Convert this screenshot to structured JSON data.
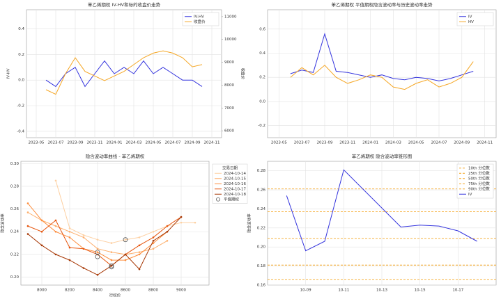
{
  "chart_data": [
    {
      "type": "line",
      "title": "苯乙烯期权 IV-HV和标的收盘价走势",
      "ylabel": "IV-HV",
      "y2label": "收盘价",
      "yaxis_color": "#1f77b4",
      "y2axis_color": "#d62728",
      "x": [
        "2023-06",
        "2023-07",
        "2023-08",
        "2023-09",
        "2023-10",
        "2023-11",
        "2023-12",
        "2024-01",
        "2024-02",
        "2024-03",
        "2024-04",
        "2024-05",
        "2024-06",
        "2024-07",
        "2024-08",
        "2024-09",
        "2024-10"
      ],
      "series": [
        {
          "name": "IV-HV",
          "color": "#3333dd",
          "values": [
            0.0,
            -0.05,
            0.05,
            0.1,
            -0.05,
            0.05,
            0.15,
            0.05,
            0.1,
            0.05,
            0.15,
            0.05,
            0.1,
            0.05,
            0.0,
            0.0,
            -0.05
          ]
        },
        {
          "name": "收盘价",
          "color": "#f5a623",
          "axis": "y2",
          "values": [
            7800,
            7600,
            8500,
            9200,
            8600,
            8400,
            8200,
            8400,
            8600,
            8900,
            9200,
            9400,
            9500,
            9400,
            9200,
            8800,
            8900
          ]
        }
      ],
      "xlim": [
        "2023-04",
        "2024-12"
      ],
      "xticks": [
        "2023-05",
        "2023-07",
        "2023-09",
        "2023-11",
        "2024-01",
        "2024-03",
        "2024-05",
        "2024-07",
        "2024-09",
        "2024-11"
      ],
      "ylim": [
        -0.45,
        0.55
      ],
      "yticks": [
        {
          "value": -0.4,
          "label": "-0.4"
        },
        -0.2,
        {
          "value": 0,
          "label": "0.0"
        },
        0.2,
        0.4
      ],
      "y2lim": [
        5700,
        11300
      ],
      "y2ticks": [
        6000,
        7000,
        8000,
        9000,
        10000,
        11000
      ],
      "grid": true,
      "legend": "upper right"
    },
    {
      "type": "line",
      "title": "苯乙烯期权 平值期权隐含波动率与历史波动率走势",
      "x": [
        "2023-06",
        "2023-07",
        "2023-08",
        "2023-09",
        "2023-10",
        "2023-11",
        "2023-12",
        "2024-01",
        "2024-02",
        "2024-03",
        "2024-04",
        "2024-05",
        "2024-06",
        "2024-07",
        "2024-08",
        "2024-09",
        "2024-10"
      ],
      "series": [
        {
          "name": "IV",
          "color": "#3333dd",
          "values": [
            0.23,
            0.26,
            0.24,
            0.56,
            0.25,
            0.24,
            0.22,
            0.2,
            0.22,
            0.19,
            0.18,
            0.2,
            0.19,
            0.17,
            0.19,
            0.22,
            0.25
          ]
        },
        {
          "name": "HV",
          "color": "#f5a623",
          "values": [
            0.2,
            0.28,
            0.22,
            0.3,
            0.2,
            0.15,
            0.18,
            0.22,
            0.2,
            0.12,
            0.1,
            0.15,
            0.18,
            0.12,
            0.15,
            0.2,
            0.33
          ]
        }
      ],
      "xlim": [
        "2023-04",
        "2024-12"
      ],
      "xticks": [
        "2023-05",
        "2023-07",
        "2023-09",
        "2023-11",
        "2024-01",
        "2024-03",
        "2024-05",
        "2024-07",
        "2024-09",
        "2024-11"
      ],
      "ylim": [
        -0.3,
        0.76
      ],
      "yticks": [
        -0.2,
        {
          "value": 0,
          "label": "0.0"
        },
        0.2,
        0.4,
        0.6
      ],
      "grid": true,
      "legend": "upper right"
    },
    {
      "type": "line",
      "title": "隐含波动率曲线 - 苯乙烯期权",
      "xlabel": "行权价",
      "ylabel": "隐含波动率",
      "legend_title": "交易日期",
      "x": [
        7900,
        8000,
        8100,
        8200,
        8300,
        8400,
        8500,
        8600,
        8700,
        8800,
        8900,
        9000,
        9100
      ],
      "series": [
        {
          "name": "2024-10-14",
          "color": "#fdd0a2",
          "marker": true,
          "values": [
            null,
            null,
            0.285,
            0.243,
            0.237,
            0.233,
            0.23,
            0.233,
            0.235,
            0.24,
            0.245,
            0.248,
            0.248
          ]
        },
        {
          "name": "2024-10-15",
          "color": "#fdae6b",
          "marker": true,
          "values": [
            0.257,
            0.25,
            0.245,
            0.24,
            0.235,
            0.225,
            0.222,
            0.22,
            0.222,
            0.225,
            0.232,
            null,
            null
          ]
        },
        {
          "name": "2024-10-16",
          "color": "#fd8d3c",
          "marker": true,
          "values": [
            0.265,
            0.25,
            0.24,
            0.235,
            0.225,
            0.222,
            0.215,
            0.215,
            0.22,
            0.23,
            0.24,
            null,
            null
          ]
        },
        {
          "name": "2024-10-17",
          "color": "#e6550d",
          "marker": true,
          "values": [
            0.245,
            0.24,
            0.25,
            0.226,
            0.225,
            0.22,
            0.21,
            0.22,
            0.228,
            0.235,
            0.245,
            0.253,
            null
          ]
        },
        {
          "name": "2024-10-18",
          "color": "#a63603",
          "marker": true,
          "values": [
            0.238,
            0.228,
            0.22,
            0.215,
            0.208,
            0.202,
            0.21,
            0.22,
            0.207,
            0.232,
            0.24,
            0.253,
            null
          ]
        }
      ],
      "scatter": {
        "name": "平值期权",
        "color": "#555555",
        "x": [
          8400,
          8400,
          8500,
          8600,
          8500
        ],
        "values": [
          0.222,
          0.218,
          0.209,
          0.233,
          0.21
        ]
      },
      "xlim": [
        7850,
        9200
      ],
      "xticks": [
        8000,
        8200,
        8400,
        8600,
        8800,
        9000
      ],
      "ylim": [
        0.193,
        0.302
      ],
      "yticks": [
        {
          "value": 0.2,
          "label": "0.20"
        },
        {
          "value": 0.22,
          "label": "0.22"
        },
        {
          "value": 0.24,
          "label": "0.24"
        },
        {
          "value": 0.26,
          "label": "0.26"
        },
        {
          "value": 0.28,
          "label": "0.28"
        },
        {
          "value": 0.3,
          "label": "0.30"
        }
      ],
      "grid": true,
      "legend": "outside right"
    },
    {
      "type": "line",
      "title": "苯乙烯期权 隐含波动率锥形图",
      "ylabel": "隐含波动率",
      "x": [
        "10-08",
        "10-09",
        "10-10",
        "10-11",
        "10-14",
        "10-15",
        "10-16",
        "10-17",
        "10-18"
      ],
      "series": [
        {
          "name": "IV",
          "color": "#3333dd",
          "values": [
            0.254,
            0.196,
            0.206,
            0.281,
            0.221,
            0.223,
            0.222,
            0.217,
            0.206
          ]
        }
      ],
      "hlines": [
        {
          "name": "10th 分位数",
          "color": "#f5a623",
          "value": 0.166
        },
        {
          "name": "25th 分位数",
          "color": "#f5a623",
          "value": 0.181
        },
        {
          "name": "50th 分位数",
          "color": "#f5a623",
          "value": 0.209
        },
        {
          "name": "75th 分位数",
          "color": "#f5a623",
          "value": 0.237
        },
        {
          "name": "90th 分位数",
          "color": "#f5a623",
          "value": 0.261
        }
      ],
      "xlim": [
        "10-07",
        "10-19"
      ],
      "xticks": [
        "10-09",
        "10-11",
        "10-13",
        "10-15",
        "10-17"
      ],
      "ylim": [
        0.16,
        0.29
      ],
      "yticks": [
        {
          "value": 0.16,
          "label": "0.16"
        },
        {
          "value": 0.18,
          "label": "0.18"
        },
        {
          "value": 0.2,
          "label": "0.20"
        },
        {
          "value": 0.22,
          "label": "0.22"
        },
        {
          "value": 0.24,
          "label": "0.24"
        },
        {
          "value": 0.26,
          "label": "0.26"
        },
        {
          "value": 0.28,
          "label": "0.28"
        }
      ],
      "grid": true,
      "legend": "upper right"
    }
  ]
}
